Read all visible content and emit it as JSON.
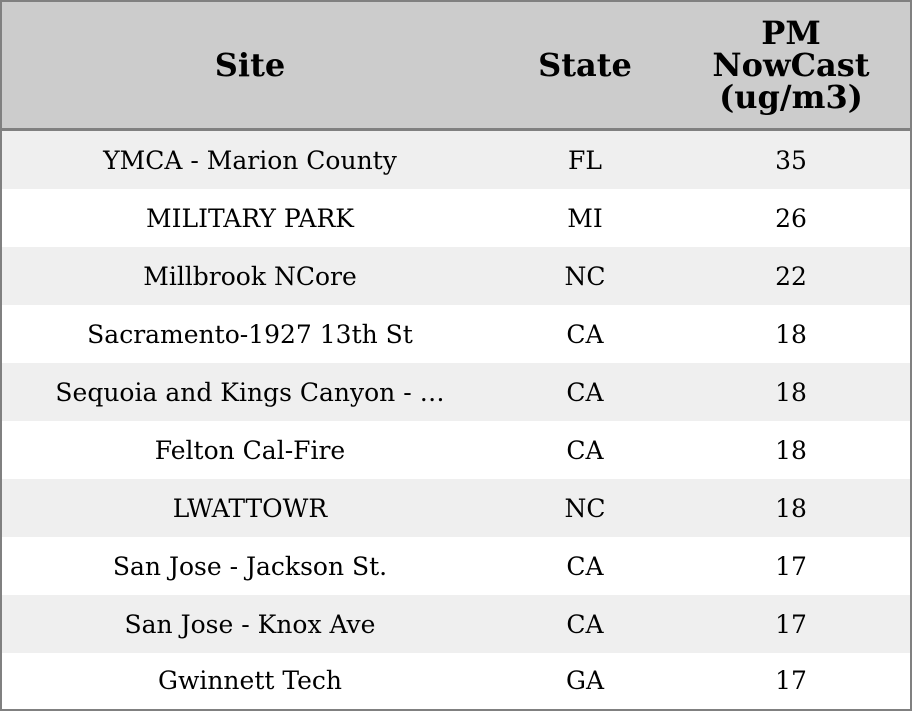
{
  "chart_data": {
    "type": "table",
    "columns": [
      "Site",
      "State",
      "PM NowCast (ug/m3)"
    ],
    "rows": [
      {
        "site": "YMCA - Marion County",
        "state": "FL",
        "pm": 35
      },
      {
        "site": "MILITARY PARK",
        "state": "MI",
        "pm": 26
      },
      {
        "site": "Millbrook NCore",
        "state": "NC",
        "pm": 22
      },
      {
        "site": "Sacramento-1927 13th St",
        "state": "CA",
        "pm": 18
      },
      {
        "site": "Sequoia and Kings Canyon - …",
        "state": "CA",
        "pm": 18
      },
      {
        "site": "Felton Cal-Fire",
        "state": "CA",
        "pm": 18
      },
      {
        "site": "LWATTOWR",
        "state": "NC",
        "pm": 18
      },
      {
        "site": "San Jose - Jackson St.",
        "state": "CA",
        "pm": 17
      },
      {
        "site": "San Jose - Knox Ave",
        "state": "CA",
        "pm": 17
      },
      {
        "site": "Gwinnett Tech",
        "state": "GA",
        "pm": 17
      }
    ],
    "colors": {
      "header_bg": "#cccccc",
      "row_alt_bg": "#efefef",
      "row_bg": "#ffffff",
      "border": "#808080"
    }
  }
}
